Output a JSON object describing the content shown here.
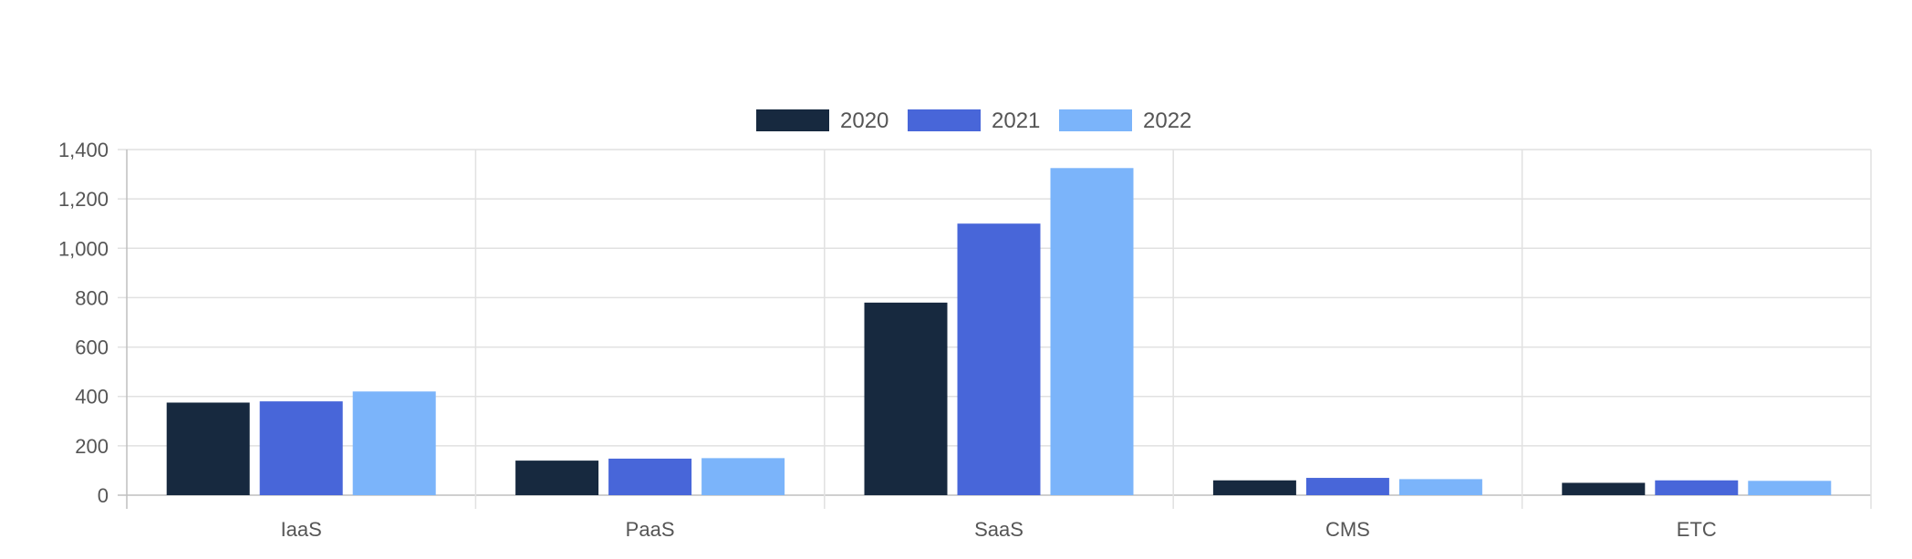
{
  "chart_data": {
    "type": "bar",
    "categories": [
      "IaaS",
      "PaaS",
      "SaaS",
      "CMS",
      "ETC"
    ],
    "series": [
      {
        "name": "2020",
        "color": "#17293f",
        "values": [
          375,
          140,
          780,
          60,
          50
        ]
      },
      {
        "name": "2021",
        "color": "#4866d9",
        "values": [
          380,
          148,
          1100,
          70,
          60
        ]
      },
      {
        "name": "2022",
        "color": "#7bb4fa",
        "values": [
          420,
          150,
          1325,
          65,
          58
        ]
      }
    ],
    "ylim": [
      0,
      1400
    ],
    "yticks": [
      "0",
      "200",
      "400",
      "600",
      "800",
      "1,000",
      "1,200",
      "1,400"
    ],
    "ytick_values": [
      0,
      200,
      400,
      600,
      800,
      1000,
      1200,
      1400
    ],
    "grid": true,
    "legend_position": "top-center"
  }
}
